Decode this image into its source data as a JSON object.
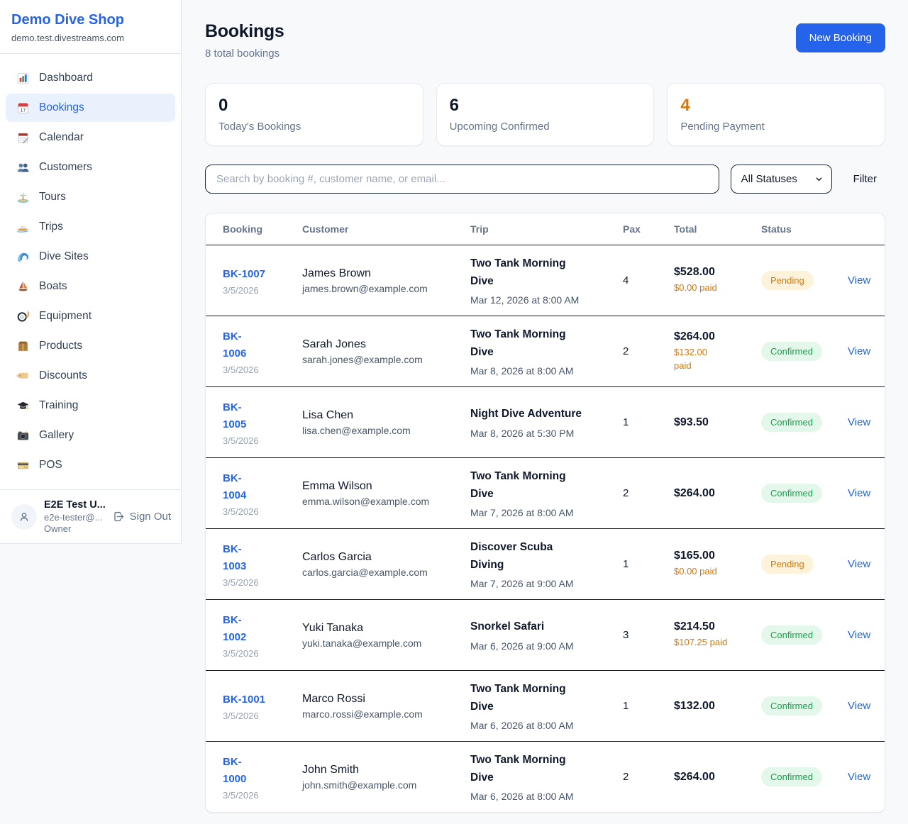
{
  "app": {
    "name": "Demo Dive Shop",
    "domain": "demo.test.divestreams.com"
  },
  "colors": {
    "accent_blue": "#2563eb",
    "pending_orange": "#d97706",
    "confirmed_green": "#16a34a"
  },
  "sidebar": {
    "items": [
      {
        "label": "Dashboard",
        "icon": "bar-chart",
        "active": false
      },
      {
        "label": "Bookings",
        "icon": "bookings-calendar",
        "active": true
      },
      {
        "label": "Calendar",
        "icon": "calendar-pad",
        "active": false
      },
      {
        "label": "Customers",
        "icon": "people",
        "active": false
      },
      {
        "label": "Tours",
        "icon": "island",
        "active": false
      },
      {
        "label": "Trips",
        "icon": "speedboat",
        "active": false
      },
      {
        "label": "Dive Sites",
        "icon": "wave",
        "active": false
      },
      {
        "label": "Boats",
        "icon": "sailboat",
        "active": false
      },
      {
        "label": "Equipment",
        "icon": "dive-mask",
        "active": false
      },
      {
        "label": "Products",
        "icon": "package",
        "active": false
      },
      {
        "label": "Discounts",
        "icon": "tag",
        "active": false
      },
      {
        "label": "Training",
        "icon": "grad-cap",
        "active": false
      },
      {
        "label": "Gallery",
        "icon": "camera",
        "active": false
      },
      {
        "label": "POS",
        "icon": "credit-card",
        "active": false
      }
    ],
    "user": {
      "name": "E2E Test U...",
      "email": "e2e-tester@...",
      "role": "Owner",
      "sign_out_label": "Sign Out"
    }
  },
  "header": {
    "title": "Bookings",
    "subtitle": "8 total bookings",
    "new_booking_label": "New Booking"
  },
  "stats": [
    {
      "value": "0",
      "label": "Today's Bookings",
      "value_color": "#0f172a"
    },
    {
      "value": "6",
      "label": "Upcoming Confirmed",
      "value_color": "#0f172a"
    },
    {
      "value": "4",
      "label": "Pending Payment",
      "value_color": "#d97706"
    }
  ],
  "filters": {
    "search_placeholder": "Search by booking #, customer name, or email...",
    "status_selected": "All Statuses",
    "filter_label": "Filter"
  },
  "table": {
    "columns": [
      "Booking",
      "Customer",
      "Trip",
      "Pax",
      "Total",
      "Status"
    ],
    "rows": [
      {
        "booking": "BK-1007",
        "date": "3/5/2026",
        "customer": "James Brown",
        "email": "james.brown@example.com",
        "trip": "Two Tank Morning\nDive",
        "trip_datetime": "Mar 12, 2026 at 8:00 AM",
        "pax": "4",
        "total": "$528.00",
        "paid": "$0.00 paid",
        "status": "Pending",
        "view_label": "View"
      },
      {
        "booking": "BK-\n1006",
        "date": "3/5/2026",
        "customer": "Sarah Jones",
        "email": "sarah.jones@example.com",
        "trip": "Two Tank Morning\nDive",
        "trip_datetime": "Mar 8, 2026 at 8:00 AM",
        "pax": "2",
        "total": "$264.00",
        "paid": "$132.00\npaid",
        "status": "Confirmed",
        "view_label": "View"
      },
      {
        "booking": "BK-\n1005",
        "date": "3/5/2026",
        "customer": "Lisa Chen",
        "email": "lisa.chen@example.com",
        "trip": "Night Dive Adventure",
        "trip_datetime": "Mar 8, 2026 at 5:30 PM",
        "pax": "1",
        "total": "$93.50",
        "paid": null,
        "status": "Confirmed",
        "view_label": "View"
      },
      {
        "booking": "BK-\n1004",
        "date": "3/5/2026",
        "customer": "Emma Wilson",
        "email": "emma.wilson@example.com",
        "trip": "Two Tank Morning\nDive",
        "trip_datetime": "Mar 7, 2026 at 8:00 AM",
        "pax": "2",
        "total": "$264.00",
        "paid": null,
        "status": "Confirmed",
        "view_label": "View"
      },
      {
        "booking": "BK-\n1003",
        "date": "3/5/2026",
        "customer": "Carlos Garcia",
        "email": "carlos.garcia@example.com",
        "trip": "Discover Scuba\nDiving",
        "trip_datetime": "Mar 7, 2026 at 9:00 AM",
        "pax": "1",
        "total": "$165.00",
        "paid": "$0.00 paid",
        "status": "Pending",
        "view_label": "View"
      },
      {
        "booking": "BK-\n1002",
        "date": "3/5/2026",
        "customer": "Yuki Tanaka",
        "email": "yuki.tanaka@example.com",
        "trip": "Snorkel Safari",
        "trip_datetime": "Mar 6, 2026 at 9:00 AM",
        "pax": "3",
        "total": "$214.50",
        "paid": "$107.25 paid",
        "status": "Confirmed",
        "view_label": "View"
      },
      {
        "booking": "BK-1001",
        "date": "3/5/2026",
        "customer": "Marco Rossi",
        "email": "marco.rossi@example.com",
        "trip": "Two Tank Morning\nDive",
        "trip_datetime": "Mar 6, 2026 at 8:00 AM",
        "pax": "1",
        "total": "$132.00",
        "paid": null,
        "status": "Confirmed",
        "view_label": "View"
      },
      {
        "booking": "BK-\n1000",
        "date": "3/5/2026",
        "customer": "John Smith",
        "email": "john.smith@example.com",
        "trip": "Two Tank Morning\nDive",
        "trip_datetime": "Mar 6, 2026 at 8:00 AM",
        "pax": "2",
        "total": "$264.00",
        "paid": null,
        "status": "Confirmed",
        "view_label": "View"
      }
    ]
  }
}
